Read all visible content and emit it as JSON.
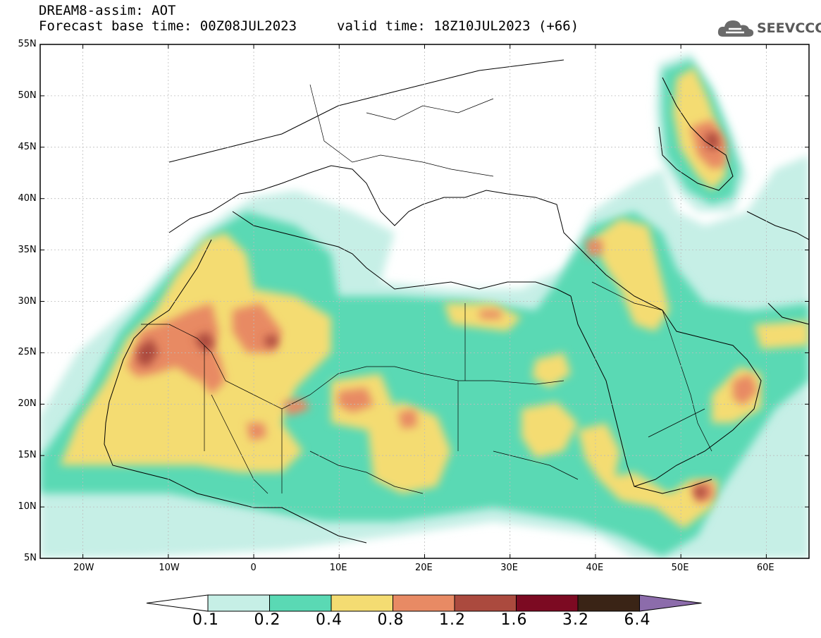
{
  "header": {
    "title": "DREAM8-assim: AOT",
    "base_time": "Forecast base time: 00Z08JUL2023",
    "valid_time": "valid time: 18Z10JUL2023 (+66)"
  },
  "logo": {
    "text": "SEEVCCC",
    "icon": "cloud-icon"
  },
  "map": {
    "lon_range": [
      -25,
      65
    ],
    "lat_range": [
      5,
      55
    ],
    "lat_ticks": [
      {
        "value": 55,
        "label": "55N"
      },
      {
        "value": 50,
        "label": "50N"
      },
      {
        "value": 45,
        "label": "45N"
      },
      {
        "value": 40,
        "label": "40N"
      },
      {
        "value": 35,
        "label": "35N"
      },
      {
        "value": 30,
        "label": "30N"
      },
      {
        "value": 25,
        "label": "25N"
      },
      {
        "value": 20,
        "label": "20N"
      },
      {
        "value": 15,
        "label": "15N"
      },
      {
        "value": 10,
        "label": "10N"
      },
      {
        "value": 5,
        "label": "5N"
      }
    ],
    "lon_ticks": [
      {
        "value": -20,
        "label": "20W"
      },
      {
        "value": -10,
        "label": "10W"
      },
      {
        "value": 0,
        "label": "0"
      },
      {
        "value": 10,
        "label": "10E"
      },
      {
        "value": 20,
        "label": "20E"
      },
      {
        "value": 30,
        "label": "30E"
      },
      {
        "value": 40,
        "label": "40E"
      },
      {
        "value": 50,
        "label": "50E"
      },
      {
        "value": 60,
        "label": "60E"
      }
    ],
    "grid": true
  },
  "colorbar": {
    "labels": [
      "0.1",
      "0.2",
      "0.4",
      "0.8",
      "1.2",
      "1.6",
      "3.2",
      "6.4"
    ],
    "colors": [
      "#ffffff",
      "#c6efe6",
      "#5ad9b4",
      "#f4dc72",
      "#e88a64",
      "#ab4a3e",
      "#7c0a22",
      "#3a2416",
      "#8c6cab"
    ]
  }
}
